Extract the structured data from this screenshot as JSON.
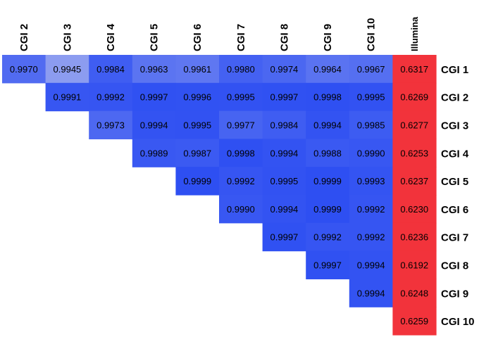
{
  "chart_data": {
    "type": "heatmap",
    "columns": [
      "CGI 2",
      "CGI 3",
      "CGI 4",
      "CGI 5",
      "CGI 6",
      "CGI 7",
      "CGI 8",
      "CGI 9",
      "CGI 10",
      "Illumina"
    ],
    "rows": [
      "CGI 1",
      "CGI 2",
      "CGI 3",
      "CGI 4",
      "CGI 5",
      "CGI 6",
      "CGI 7",
      "CGI 8",
      "CGI 9",
      "CGI 10"
    ],
    "values": [
      [
        "0.9970",
        "0.9945",
        "0.9984",
        "0.9963",
        "0.9961",
        "0.9980",
        "0.9974",
        "0.9964",
        "0.9967",
        "0.6317"
      ],
      [
        null,
        "0.9991",
        "0.9992",
        "0.9997",
        "0.9996",
        "0.9995",
        "0.9997",
        "0.9998",
        "0.9995",
        "0.6269"
      ],
      [
        null,
        null,
        "0.9973",
        "0.9994",
        "0.9995",
        "0.9977",
        "0.9984",
        "0.9994",
        "0.9985",
        "0.6277"
      ],
      [
        null,
        null,
        null,
        "0.9989",
        "0.9987",
        "0.9998",
        "0.9994",
        "0.9988",
        "0.9990",
        "0.6253"
      ],
      [
        null,
        null,
        null,
        null,
        "0.9999",
        "0.9992",
        "0.9995",
        "0.9999",
        "0.9993",
        "0.6237"
      ],
      [
        null,
        null,
        null,
        null,
        null,
        "0.9990",
        "0.9994",
        "0.9999",
        "0.9992",
        "0.6230"
      ],
      [
        null,
        null,
        null,
        null,
        null,
        null,
        "0.9997",
        "0.9992",
        "0.9992",
        "0.6236"
      ],
      [
        null,
        null,
        null,
        null,
        null,
        null,
        null,
        "0.9997",
        "0.9994",
        "0.6192"
      ],
      [
        null,
        null,
        null,
        null,
        null,
        null,
        null,
        null,
        "0.9994",
        "0.6248"
      ],
      [
        null,
        null,
        null,
        null,
        null,
        null,
        null,
        null,
        null,
        "0.6259"
      ]
    ],
    "colors": {
      "high": "#2e4ff2",
      "low_blue": "#8c9cf0",
      "illumina": "#f2333b"
    }
  }
}
